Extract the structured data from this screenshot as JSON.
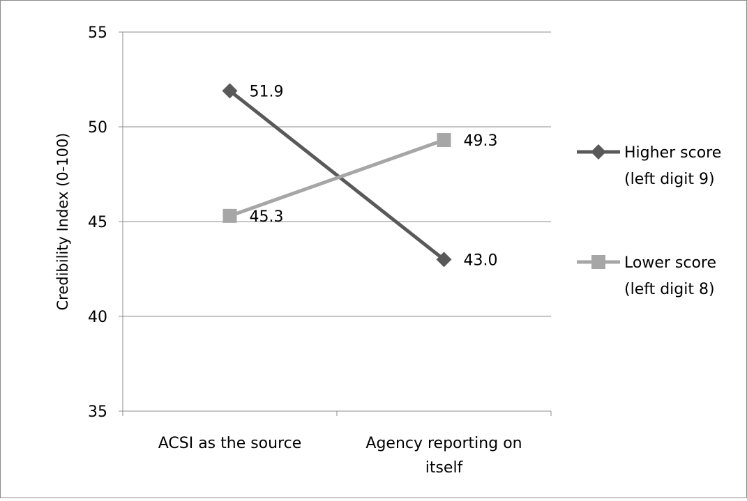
{
  "chart_data": {
    "type": "line",
    "categories": [
      [
        "ACSI as the source"
      ],
      [
        "Agency reporting on",
        "itself"
      ]
    ],
    "series": [
      {
        "name": [
          "Higher score",
          "(left digit 9)"
        ],
        "values": [
          51.9,
          43.0
        ],
        "data_labels": [
          "51.9",
          "43.0"
        ],
        "color": "#595959",
        "marker": "diamond"
      },
      {
        "name": [
          "Lower score",
          "(left digit 8)"
        ],
        "values": [
          45.3,
          49.3
        ],
        "data_labels": [
          "45.3",
          "49.3"
        ],
        "color": "#a6a6a6",
        "marker": "square"
      }
    ],
    "ylabel": "Credibility Index (0-100)",
    "xlabel": "",
    "ylim": [
      35,
      55
    ],
    "yticks": [
      "35",
      "40",
      "45",
      "50",
      "55"
    ],
    "grid": true,
    "legend_position": "right"
  }
}
